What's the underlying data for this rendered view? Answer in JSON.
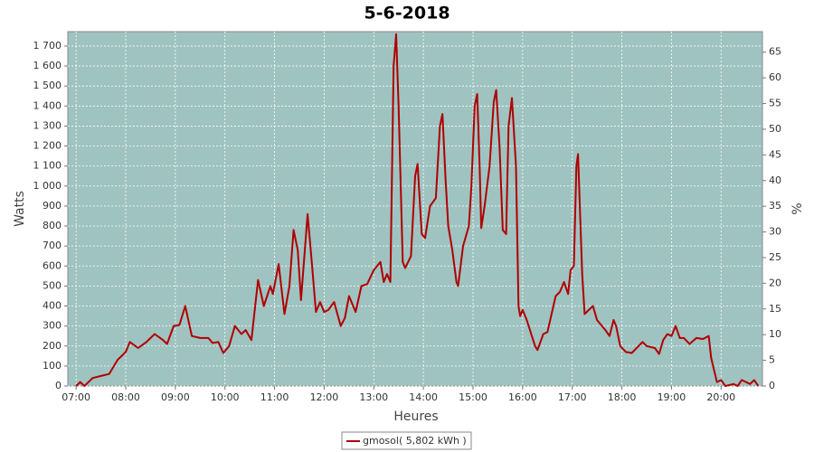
{
  "chart_data": {
    "type": "line",
    "title": "5-6-2018",
    "xlabel": "Heures",
    "ylabel": "Watts",
    "y2label": "%",
    "x": [
      "07:00",
      "07:05",
      "07:10",
      "07:20",
      "07:30",
      "07:40",
      "07:50",
      "08:00",
      "08:05",
      "08:15",
      "08:25",
      "08:35",
      "08:45",
      "08:50",
      "08:58",
      "09:05",
      "09:12",
      "09:20",
      "09:30",
      "09:40",
      "09:45",
      "09:52",
      "09:58",
      "10:05",
      "10:12",
      "10:20",
      "10:25",
      "10:32",
      "10:40",
      "10:47",
      "10:55",
      "10:58",
      "11:05",
      "11:12",
      "11:18",
      "11:23",
      "11:28",
      "11:32",
      "11:40",
      "11:45",
      "11:50",
      "11:55",
      "12:00",
      "12:05",
      "12:12",
      "12:20",
      "12:25",
      "12:30",
      "12:38",
      "12:45",
      "12:52",
      "13:00",
      "13:08",
      "13:12",
      "13:16",
      "13:20",
      "13:24",
      "13:27",
      "13:30",
      "13:35",
      "13:38",
      "13:45",
      "13:50",
      "13:53",
      "13:58",
      "14:02",
      "14:08",
      "14:15",
      "14:20",
      "14:23",
      "14:27",
      "14:30",
      "14:35",
      "14:40",
      "14:42",
      "14:48",
      "14:55",
      "14:58",
      "15:02",
      "15:05",
      "15:08",
      "15:10",
      "15:14",
      "15:20",
      "15:25",
      "15:28",
      "15:32",
      "15:36",
      "15:40",
      "15:43",
      "15:47",
      "15:52",
      "15:55",
      "15:57",
      "16:00",
      "16:05",
      "16:15",
      "16:18",
      "16:25",
      "16:30",
      "16:40",
      "16:45",
      "16:50",
      "16:55",
      "16:58",
      "17:02",
      "17:05",
      "17:07",
      "17:12",
      "17:15",
      "17:20",
      "17:25",
      "17:30",
      "17:40",
      "17:45",
      "17:50",
      "17:53",
      "17:58",
      "18:05",
      "18:12",
      "18:25",
      "18:30",
      "18:40",
      "18:45",
      "18:50",
      "18:55",
      "19:00",
      "19:05",
      "19:10",
      "19:15",
      "19:22",
      "19:30",
      "19:38",
      "19:45",
      "19:48",
      "19:55",
      "20:00",
      "20:05",
      "20:15",
      "20:20",
      "20:25",
      "20:35",
      "20:40",
      "20:45"
    ],
    "series": [
      {
        "name": "gmosol( 5,802 kWh )",
        "color": "#b00000",
        "values": [
          0,
          20,
          0,
          40,
          50,
          60,
          130,
          170,
          220,
          190,
          220,
          260,
          230,
          210,
          300,
          305,
          400,
          250,
          240,
          240,
          215,
          220,
          165,
          200,
          300,
          260,
          280,
          230,
          530,
          400,
          500,
          460,
          610,
          360,
          500,
          780,
          680,
          430,
          860,
          620,
          370,
          420,
          370,
          380,
          420,
          300,
          340,
          450,
          370,
          500,
          510,
          580,
          620,
          520,
          560,
          520,
          1600,
          1760,
          1400,
          620,
          590,
          650,
          1050,
          1110,
          760,
          740,
          900,
          940,
          1300,
          1360,
          1020,
          800,
          680,
          520,
          500,
          700,
          800,
          1000,
          1400,
          1460,
          1100,
          790,
          900,
          1100,
          1420,
          1480,
          1200,
          780,
          760,
          1300,
          1440,
          1100,
          400,
          350,
          380,
          330,
          200,
          180,
          260,
          270,
          450,
          470,
          520,
          460,
          580,
          600,
          1100,
          1160,
          560,
          360,
          380,
          400,
          330,
          280,
          250,
          330,
          300,
          200,
          170,
          165,
          220,
          200,
          190,
          160,
          230,
          260,
          250,
          300,
          240,
          240,
          210,
          240,
          235,
          250,
          140,
          20,
          30,
          0,
          10,
          0,
          30,
          10,
          30,
          0
        ]
      }
    ],
    "xlim": [
      "06:50",
      "20:50"
    ],
    "xticks": [
      "07:00",
      "08:00",
      "09:00",
      "10:00",
      "11:00",
      "12:00",
      "13:00",
      "14:00",
      "15:00",
      "16:00",
      "17:00",
      "18:00",
      "19:00",
      "20:00"
    ],
    "ylim": [
      0,
      1772
    ],
    "yticks": [
      0,
      100,
      200,
      300,
      400,
      500,
      600,
      700,
      800,
      900,
      {
        "value": 1000,
        "label": "1 000"
      },
      {
        "value": 1100,
        "label": "1 100"
      },
      {
        "value": 1200,
        "label": "1 200"
      },
      {
        "value": 1300,
        "label": "1 300"
      },
      {
        "value": 1400,
        "label": "1 400"
      },
      {
        "value": 1500,
        "label": "1 500"
      },
      {
        "value": 1600,
        "label": "1 600"
      },
      {
        "value": 1700,
        "label": "1 700"
      }
    ],
    "y2lim": [
      0,
      69
    ],
    "y2ticks": [
      0,
      5,
      10,
      15,
      20,
      25,
      30,
      35,
      40,
      45,
      50,
      55,
      60,
      65
    ],
    "grid": true,
    "plot_background": "#9fc3c1"
  }
}
